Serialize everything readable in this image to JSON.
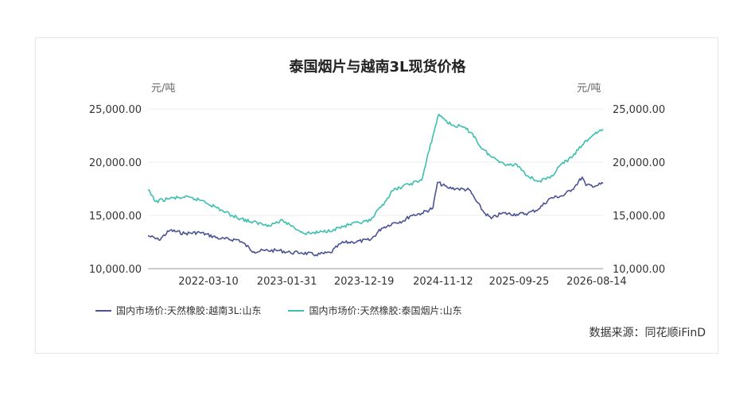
{
  "chart_data": {
    "type": "line",
    "title": "泰国烟片与越南3L现货价格",
    "ylabel_left": "元/吨",
    "ylabel_right": "元/吨",
    "ylim": [
      10000,
      25000
    ],
    "y_ticks": [
      "25,000.00",
      "20,000.00",
      "15,000.00",
      "10,000.00"
    ],
    "x_ticks": [
      "2022-03-10",
      "2023-01-31",
      "2023-12-19",
      "2024-11-12",
      "2025-09-25",
      "2026-08-14"
    ],
    "xlim": [
      "2021-07-01",
      "2026-09-10"
    ],
    "grid": true,
    "legend_position": "bottom-left",
    "source": "数据来源：同花顺iFinD",
    "series": [
      {
        "name": "国内市场价:天然橡胶:越南3L:山东",
        "color": "#4a5394",
        "points": [
          [
            "2021-07-01",
            13100
          ],
          [
            "2021-08-15",
            12700
          ],
          [
            "2021-10-01",
            13600
          ],
          [
            "2021-12-01",
            13300
          ],
          [
            "2022-02-01",
            13400
          ],
          [
            "2022-05-01",
            12800
          ],
          [
            "2022-07-15",
            12700
          ],
          [
            "2022-09-15",
            11600
          ],
          [
            "2022-11-01",
            11700
          ],
          [
            "2023-01-01",
            11700
          ],
          [
            "2023-02-15",
            11500
          ],
          [
            "2023-04-01",
            11500
          ],
          [
            "2023-06-01",
            11300
          ],
          [
            "2023-08-01",
            11500
          ],
          [
            "2023-09-15",
            12400
          ],
          [
            "2023-11-01",
            12500
          ],
          [
            "2024-01-15",
            12700
          ],
          [
            "2024-03-01",
            13800
          ],
          [
            "2024-04-20",
            14300
          ],
          [
            "2024-06-01",
            14500
          ],
          [
            "2024-07-01",
            15000
          ],
          [
            "2024-08-15",
            15200
          ],
          [
            "2024-10-01",
            15700
          ],
          [
            "2024-10-20",
            18100
          ],
          [
            "2024-12-01",
            17600
          ],
          [
            "2025-01-15",
            17500
          ],
          [
            "2025-03-01",
            17400
          ],
          [
            "2025-04-01",
            16300
          ],
          [
            "2025-05-01",
            15300
          ],
          [
            "2025-06-01",
            14700
          ],
          [
            "2025-07-15",
            15200
          ],
          [
            "2025-09-15",
            15100
          ],
          [
            "2025-11-01",
            15200
          ],
          [
            "2025-12-15",
            15600
          ],
          [
            "2026-02-01",
            16600
          ],
          [
            "2026-04-01",
            16900
          ],
          [
            "2026-05-15",
            17700
          ],
          [
            "2026-06-15",
            18600
          ],
          [
            "2026-07-01",
            17800
          ],
          [
            "2026-08-15",
            17800
          ],
          [
            "2026-09-10",
            18000
          ]
        ]
      },
      {
        "name": "国内市场价:天然橡胶:泰国烟片:山东",
        "color": "#3dbfb0",
        "points": [
          [
            "2021-07-01",
            17400
          ],
          [
            "2021-08-01",
            16300
          ],
          [
            "2021-10-01",
            16600
          ],
          [
            "2021-12-01",
            16700
          ],
          [
            "2022-02-15",
            16400
          ],
          [
            "2022-04-15",
            15700
          ],
          [
            "2022-06-15",
            15000
          ],
          [
            "2022-09-01",
            14400
          ],
          [
            "2022-11-15",
            14100
          ],
          [
            "2023-01-15",
            14500
          ],
          [
            "2023-03-01",
            13900
          ],
          [
            "2023-04-15",
            13300
          ],
          [
            "2023-06-15",
            13400
          ],
          [
            "2023-08-15",
            13700
          ],
          [
            "2023-10-15",
            14100
          ],
          [
            "2023-12-01",
            14300
          ],
          [
            "2024-01-15",
            14500
          ],
          [
            "2024-03-15",
            16300
          ],
          [
            "2024-04-15",
            17300
          ],
          [
            "2024-05-15",
            17600
          ],
          [
            "2024-07-01",
            18000
          ],
          [
            "2024-08-15",
            18300
          ],
          [
            "2024-10-01",
            22500
          ],
          [
            "2024-10-25",
            24500
          ],
          [
            "2024-12-15",
            23500
          ],
          [
            "2025-02-01",
            23300
          ],
          [
            "2025-03-15",
            22700
          ],
          [
            "2025-04-15",
            21500
          ],
          [
            "2025-06-01",
            20500
          ],
          [
            "2025-07-15",
            20000
          ],
          [
            "2025-08-15",
            19700
          ],
          [
            "2025-09-15",
            19800
          ],
          [
            "2025-11-01",
            18700
          ],
          [
            "2025-12-15",
            18200
          ],
          [
            "2026-02-01",
            18500
          ],
          [
            "2026-03-15",
            19700
          ],
          [
            "2026-05-01",
            20400
          ],
          [
            "2026-06-15",
            21600
          ],
          [
            "2026-08-01",
            22600
          ],
          [
            "2026-09-10",
            23100
          ]
        ]
      }
    ]
  }
}
